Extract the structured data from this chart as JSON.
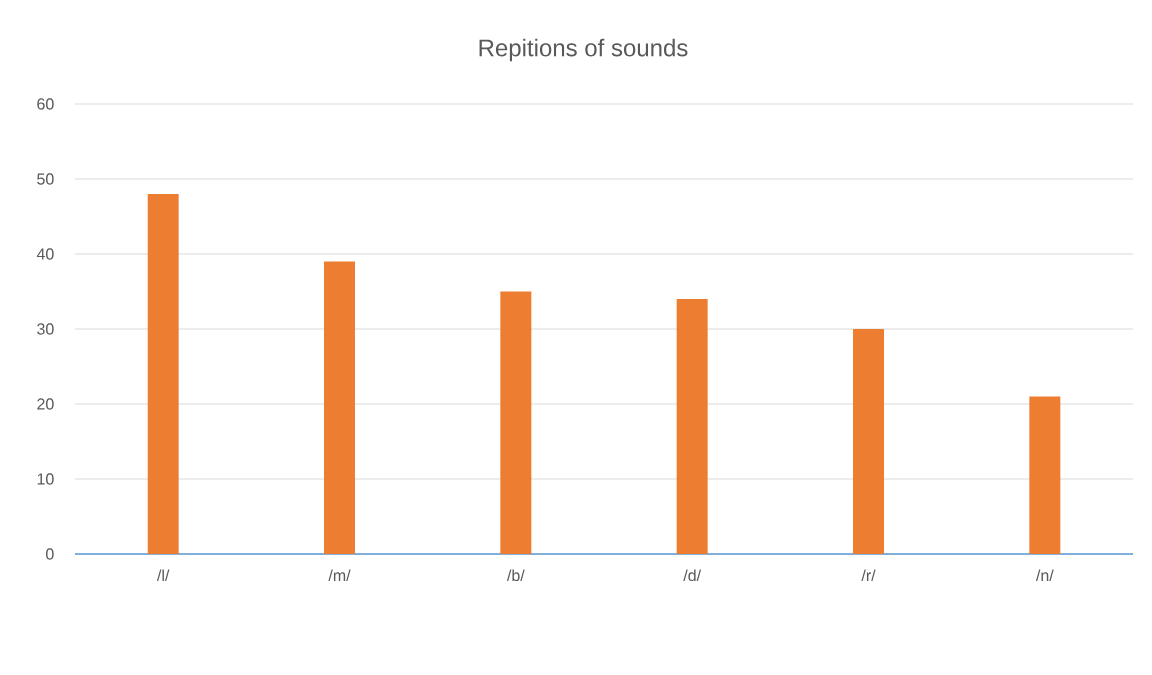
{
  "chart_data": {
    "type": "bar",
    "title": "Repitions of sounds",
    "categories": [
      "/l/",
      "/m/",
      "/b/",
      "/d/",
      "/r/",
      "/n/"
    ],
    "values": [
      48,
      39,
      35,
      34,
      30,
      21
    ],
    "color": "#ed7d31",
    "ylim": [
      0,
      60
    ],
    "yticks": [
      0,
      10,
      20,
      30,
      40,
      50,
      60
    ],
    "grid": "y"
  }
}
